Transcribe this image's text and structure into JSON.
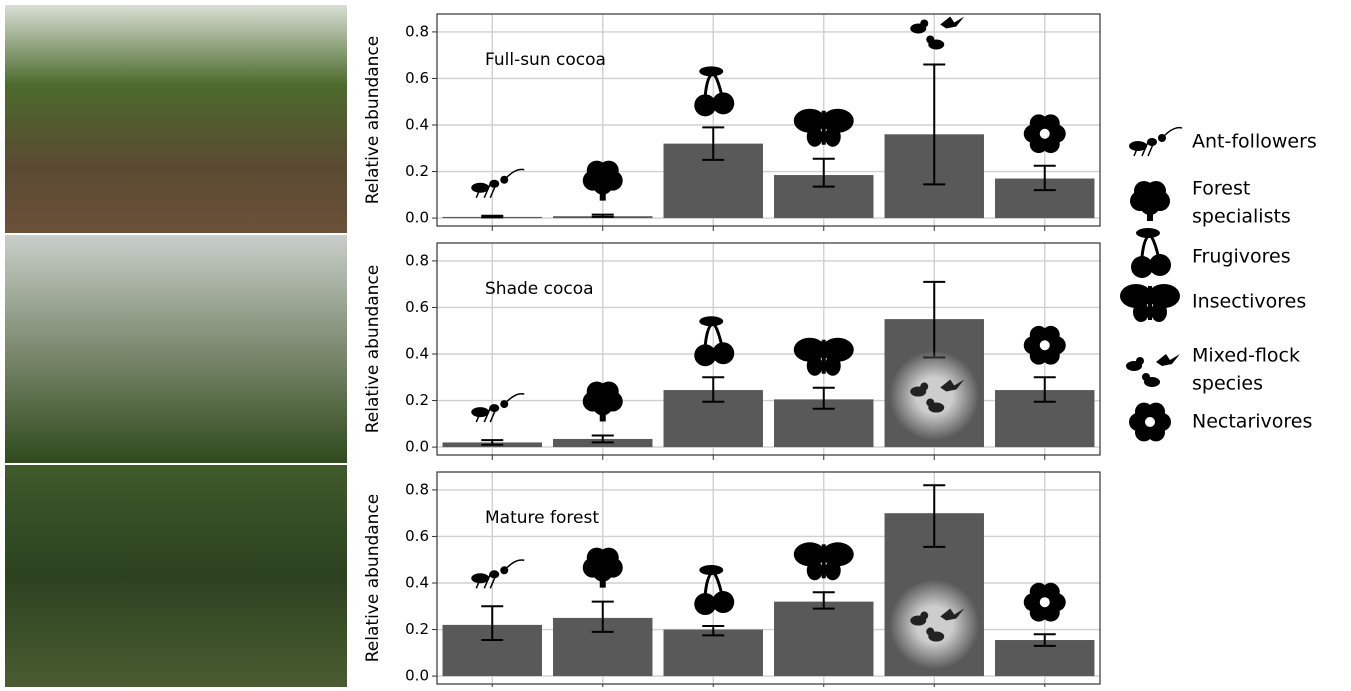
{
  "chart_data": [
    {
      "type": "bar",
      "title": "Full-sun cocoa",
      "ylabel": "Relative abundance",
      "categories": [
        null,
        null,
        null,
        null,
        null,
        null
      ],
      "values": [
        0.005,
        0.008,
        0.32,
        0.185,
        0.36,
        0.17
      ],
      "ci_low": [
        0.003,
        0.005,
        0.25,
        0.135,
        0.145,
        0.12
      ],
      "ci_high": [
        0.01,
        0.015,
        0.39,
        0.255,
        0.66,
        0.225
      ],
      "color": "#595959",
      "ylim": [
        -0.034,
        0.877
      ],
      "yticks": [
        {
          "value": 0,
          "label": "0.0"
        },
        0.2,
        0.4,
        0.6,
        0.8
      ],
      "grid": true
    },
    {
      "type": "bar",
      "title": "Shade cocoa",
      "ylabel": "Relative abundance",
      "categories": [
        null,
        null,
        null,
        null,
        null,
        null
      ],
      "values": [
        0.02,
        0.035,
        0.245,
        0.205,
        0.55,
        0.245
      ],
      "ci_low": [
        0.01,
        0.02,
        0.195,
        0.165,
        0.385,
        0.195
      ],
      "ci_high": [
        0.03,
        0.05,
        0.3,
        0.255,
        0.71,
        0.3
      ],
      "color": "#595959",
      "ylim": [
        -0.034,
        0.877
      ],
      "yticks": [
        {
          "value": 0,
          "label": "0.0"
        },
        0.2,
        0.4,
        0.6,
        0.8
      ],
      "grid": true
    },
    {
      "type": "bar",
      "title": "Mature forest",
      "ylabel": "Relative abundance",
      "categories": [
        null,
        null,
        null,
        null,
        null,
        null
      ],
      "values": [
        0.22,
        0.25,
        0.2,
        0.32,
        0.7,
        0.155
      ],
      "ci_low": [
        0.155,
        0.19,
        0.175,
        0.29,
        0.555,
        0.13
      ],
      "ci_high": [
        0.3,
        0.32,
        0.215,
        0.36,
        0.82,
        0.18
      ],
      "color": "#595959",
      "ylim": [
        -0.034,
        0.877
      ],
      "yticks": [
        {
          "value": 0,
          "label": "0.0"
        },
        0.2,
        0.4,
        0.6,
        0.8
      ],
      "grid": true
    }
  ],
  "legend": [
    [
      "Ant-followers"
    ],
    [
      "Forest",
      "specialists"
    ],
    [
      "Frugivores"
    ],
    [
      "Insectivores"
    ],
    [
      "Mixed-flock",
      "species"
    ],
    [
      "Nectarivores"
    ]
  ]
}
